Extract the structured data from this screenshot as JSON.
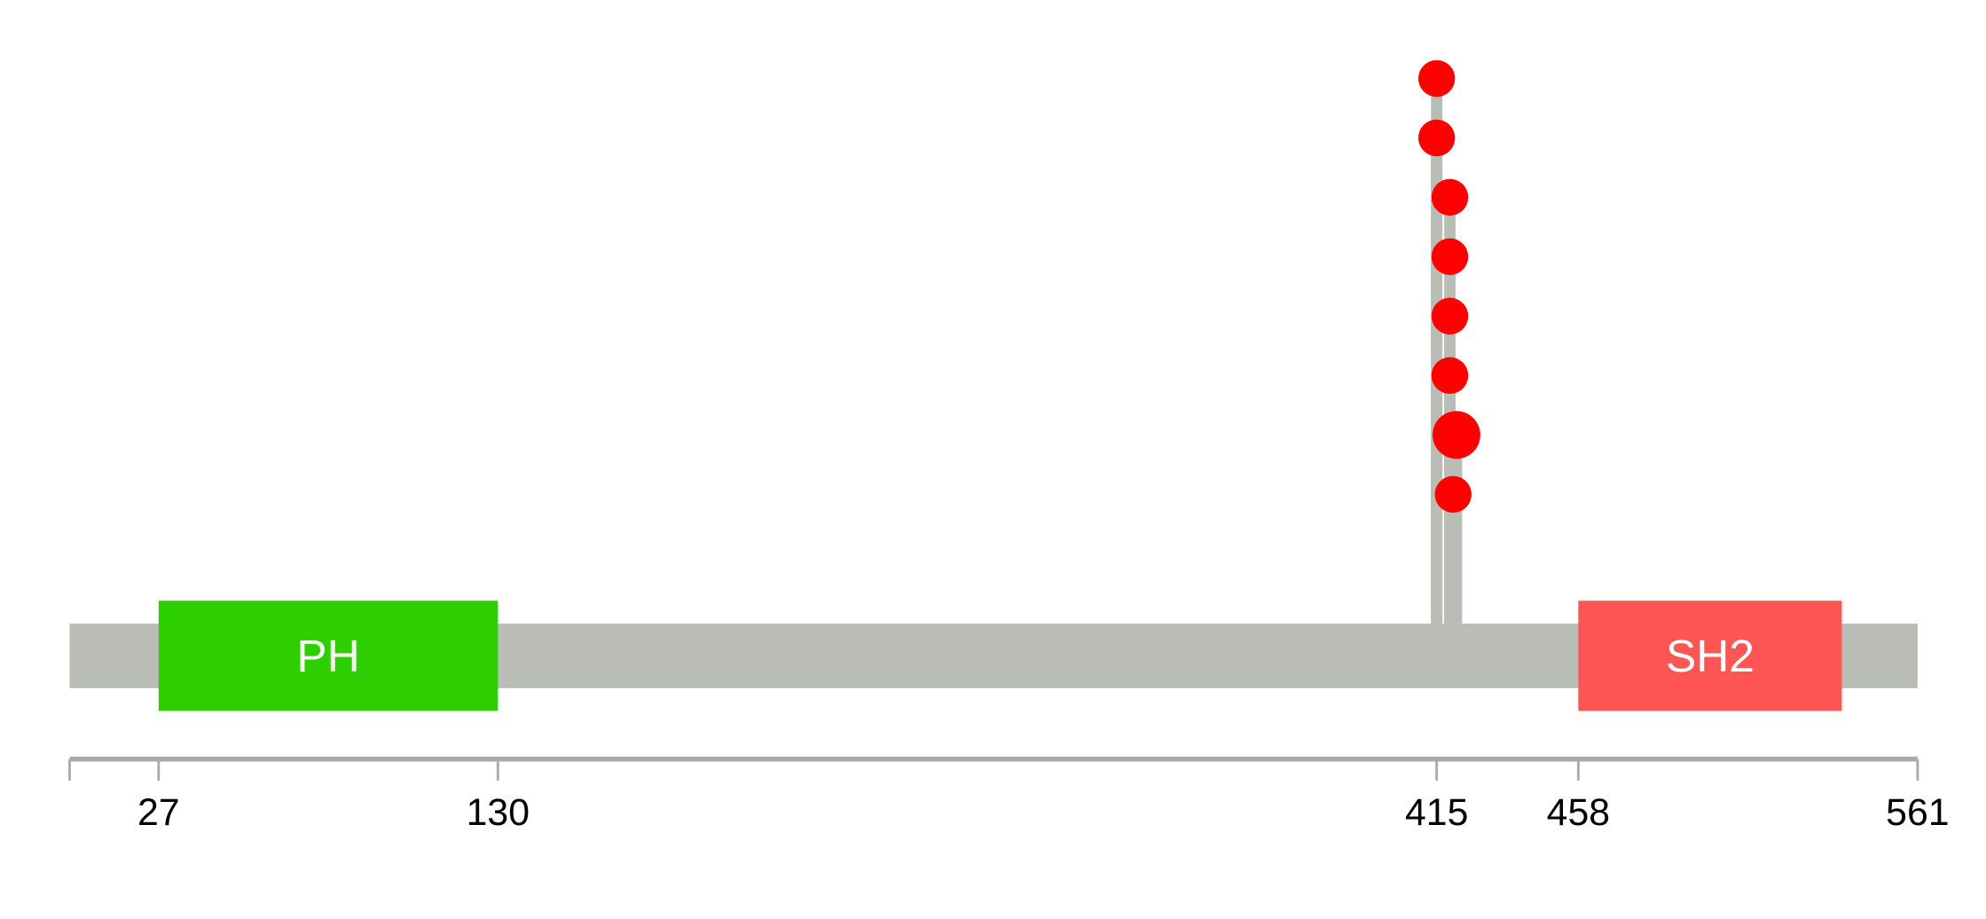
{
  "protein": {
    "length": 561,
    "backbone_color": "#babdb6"
  },
  "domains": [
    {
      "name": "PH",
      "start": 27,
      "end": 130,
      "color": "#2ecf00"
    },
    {
      "name": "SH2",
      "start": 458,
      "end": 538,
      "color": "#ff5555"
    }
  ],
  "axis": {
    "ticks": [
      0,
      27,
      130,
      415,
      458,
      561
    ],
    "labels": [
      "",
      "27",
      "130",
      "415",
      "458",
      "561"
    ]
  },
  "mutations": {
    "color": "#ff0000",
    "items": [
      {
        "position": 415,
        "level": 8,
        "size": 1
      },
      {
        "position": 415,
        "level": 7,
        "size": 1
      },
      {
        "position": 419,
        "level": 6,
        "size": 1
      },
      {
        "position": 419,
        "level": 5,
        "size": 1
      },
      {
        "position": 419,
        "level": 4,
        "size": 1
      },
      {
        "position": 419,
        "level": 3,
        "size": 1
      },
      {
        "position": 421,
        "level": 2,
        "size": 1.3
      },
      {
        "position": 420,
        "level": 1,
        "size": 1
      }
    ]
  }
}
